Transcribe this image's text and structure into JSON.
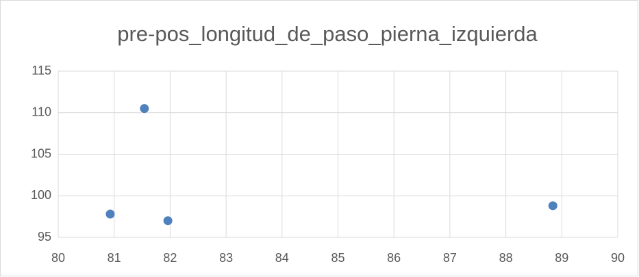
{
  "chart_data": {
    "type": "scatter",
    "title": "pre-pos_longitud_de_paso_pierna_izquierda",
    "series": [
      {
        "color": "#4f81bd",
        "x": [
          80.93,
          81.54,
          81.96,
          88.84
        ],
        "values": [
          97.8,
          110.5,
          97.0,
          98.8
        ]
      }
    ],
    "xlim": [
      80,
      90
    ],
    "xticks": [
      80,
      81,
      82,
      83,
      84,
      85,
      86,
      87,
      88,
      89,
      90
    ],
    "ylim": [
      95,
      115
    ],
    "yticks": [
      95,
      100,
      105,
      110,
      115
    ],
    "grid": true
  }
}
